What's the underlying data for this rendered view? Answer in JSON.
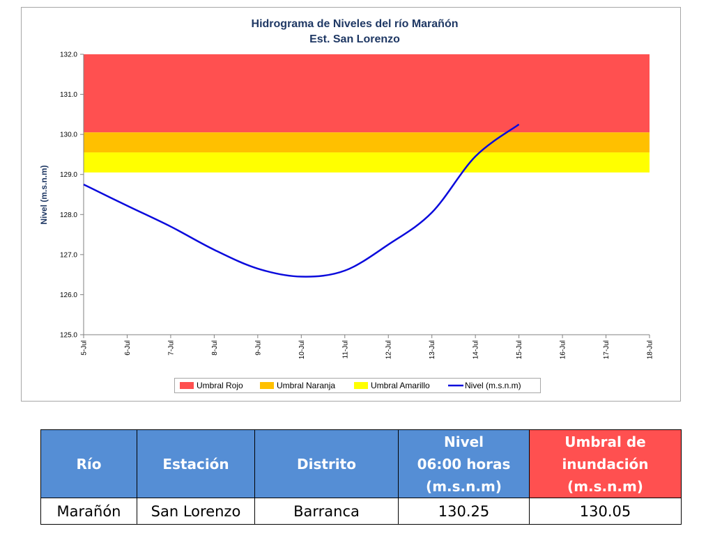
{
  "chart_data": {
    "type": "line",
    "title": [
      "Hidrograma de Niveles del río Marañón",
      "Est. San Lorenzo"
    ],
    "y_label": "Nivel (m.s.n.m)",
    "categories": [
      "5-Jul",
      "6-Jul",
      "7-Jul",
      "8-Jul",
      "9-Jul",
      "10-Jul",
      "11-Jul",
      "12-Jul",
      "13-Jul",
      "14-Jul",
      "15-Jul",
      "16-Jul",
      "17-Jul",
      "18-Jul"
    ],
    "thresholds": [
      {
        "name": "Umbral Rojo",
        "color": "#ff5050",
        "from": 130.05,
        "to": 132
      },
      {
        "name": "Umbral Naranja",
        "color": "#ffc000",
        "from": 129.55,
        "to": 130.05
      },
      {
        "name": "Umbral Amarillo",
        "color": "#ffff00",
        "from": 129.05,
        "to": 129.55
      }
    ],
    "series": [
      {
        "name": "Nivel (m.s.n.m)",
        "color": "#0a0adc",
        "values": [
          128.75,
          128.22,
          127.7,
          127.12,
          126.65,
          126.45,
          126.6,
          127.25,
          128.05,
          129.45,
          130.25,
          null,
          null,
          null
        ]
      }
    ],
    "ylim": [
      125,
      132
    ],
    "yticks": [
      {
        "value": 125,
        "label": "125.0"
      },
      {
        "value": 126,
        "label": "126.0"
      },
      {
        "value": 127,
        "label": "127.0"
      },
      {
        "value": 128,
        "label": "128.0"
      },
      {
        "value": 129,
        "label": "129.0"
      },
      {
        "value": 130,
        "label": "130.0"
      },
      {
        "value": 131,
        "label": "131.0"
      },
      {
        "value": 132,
        "label": "132.0"
      }
    ]
  },
  "table": {
    "header": [
      [
        "Río"
      ],
      [
        "Estación"
      ],
      [
        "Distrito"
      ],
      [
        "Nivel",
        "06:00 horas",
        "(m.s.n.m)"
      ],
      [
        "Umbral de",
        "inundación",
        "(m.s.n.m)"
      ]
    ],
    "header_colors": [
      "#558ed5",
      "#558ed5",
      "#558ed5",
      "#558ed5",
      "#ff5050"
    ],
    "rows": [
      [
        "Marañón",
        "San Lorenzo",
        "Barranca",
        "130.25",
        "130.05"
      ]
    ]
  }
}
